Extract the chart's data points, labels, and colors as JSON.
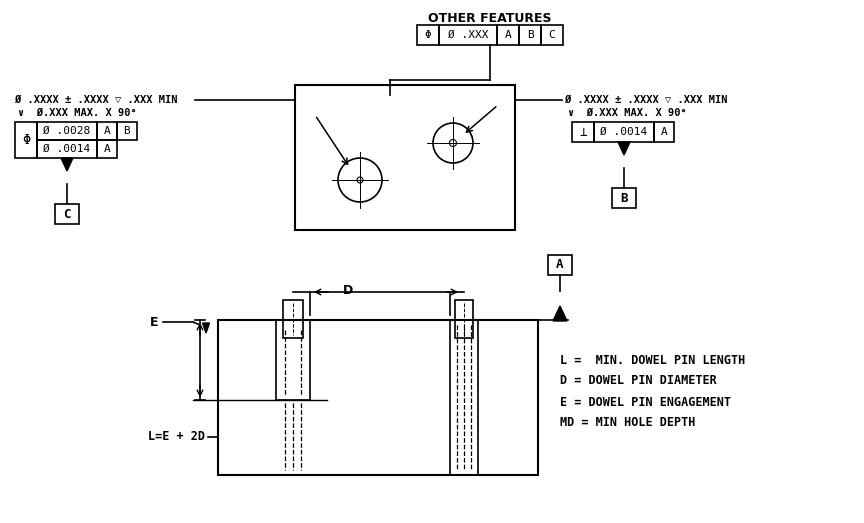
{
  "bg_color": "#ffffff",
  "other_features_label": "OTHER FEATURES",
  "other_features_box": [
    "Φ",
    "Ø .XXX",
    "A",
    "B",
    "C"
  ],
  "left_callout_line1": "Ø .XXXX ± .XXXX ▽ .XXX MIN",
  "left_callout_line2": "∨  Ø.XXX MAX. X 90°",
  "left_fcf_symbol": "Φ",
  "left_fcf_row1": [
    "Ø .0028",
    "A",
    "B"
  ],
  "left_fcf_row2": [
    "Ø .0014",
    "A"
  ],
  "left_datum_label": "C",
  "right_callout_line1": "Ø .XXXX ± .XXXX ▽ .XXX MIN",
  "right_callout_line2": "∨  Ø.XXX MAX. X 90°",
  "right_fcf_symbol": "⊥",
  "right_fcf_row1": [
    "Ø .0014",
    "A"
  ],
  "right_datum_label": "B",
  "legend_lines": [
    "L =  MIN. DOWEL PIN LENGTH",
    "D = DOWEL PIN DIAMETER",
    "E = DOWEL PIN ENGAGEMENT",
    "MD = MIN HOLE DEPTH"
  ],
  "formula": "L=E + 2D",
  "label_E": "E",
  "label_D": "D",
  "label_A": "A"
}
